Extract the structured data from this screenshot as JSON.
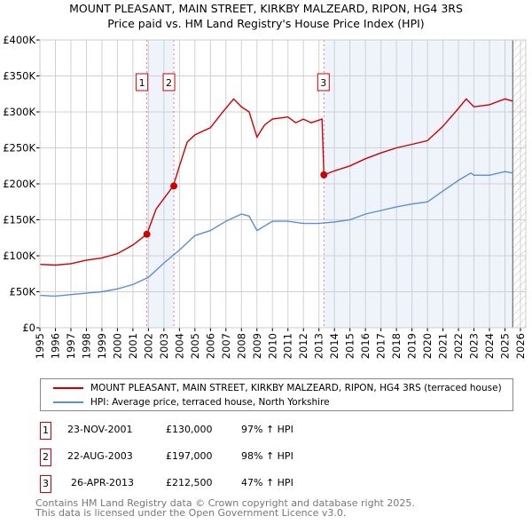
{
  "chart_data": {
    "type": "line",
    "title": "MOUNT PLEASANT, MAIN STREET, KIRKBY MALZEARD, RIPON, HG4 3RS",
    "subtitle": "Price paid vs. HM Land Registry's House Price Index (HPI)",
    "xlim": [
      1995,
      2026
    ],
    "ylim": [
      0,
      400000
    ],
    "x_ticks": [
      "1995",
      "1996",
      "1997",
      "1998",
      "1999",
      "2000",
      "2001",
      "2002",
      "2003",
      "2004",
      "2005",
      "2006",
      "2007",
      "2008",
      "2009",
      "2010",
      "2011",
      "2012",
      "2013",
      "2014",
      "2015",
      "2016",
      "2017",
      "2018",
      "2019",
      "2020",
      "2021",
      "2022",
      "2023",
      "2024",
      "2025",
      "2026"
    ],
    "y_ticks": [
      {
        "v": 0,
        "label": "£0"
      },
      {
        "v": 50000,
        "label": "£50K"
      },
      {
        "v": 100000,
        "label": "£100K"
      },
      {
        "v": 150000,
        "label": "£150K"
      },
      {
        "v": 200000,
        "label": "£200K"
      },
      {
        "v": 250000,
        "label": "£250K"
      },
      {
        "v": 300000,
        "label": "£300K"
      },
      {
        "v": 350000,
        "label": "£350K"
      },
      {
        "v": 400000,
        "label": "£400K"
      }
    ],
    "grid": true,
    "series": [
      {
        "name": "MOUNT PLEASANT, MAIN STREET, KIRKBY MALZEARD, RIPON, HG4 3RS (terraced house)",
        "color": "#cc0000",
        "x": [
          1995,
          1996,
          1997,
          1998,
          1999,
          2000,
          2001,
          2001.9,
          2002.5,
          2003.6,
          2004,
          2004.5,
          2005,
          2006,
          2006.8,
          2007.5,
          2008,
          2008.5,
          2009,
          2009.5,
          2010,
          2011,
          2011.5,
          2012,
          2012.5,
          2013.2,
          2013.32,
          2014,
          2015,
          2016,
          2017,
          2018,
          2019,
          2020,
          2021,
          2022,
          2022.5,
          2023,
          2024,
          2025,
          2025.5
        ],
        "y": [
          88000,
          87000,
          89000,
          94000,
          97000,
          103000,
          115000,
          130000,
          165000,
          197000,
          225000,
          258000,
          268000,
          278000,
          300000,
          318000,
          307000,
          300000,
          265000,
          282000,
          290000,
          293000,
          285000,
          290000,
          285000,
          290000,
          212500,
          218000,
          225000,
          235000,
          243000,
          250000,
          255000,
          260000,
          280000,
          305000,
          318000,
          307000,
          310000,
          318000,
          315000
        ]
      },
      {
        "name": "HPI: Average price, terraced house, North Yorkshire",
        "color": "#5b8fd0",
        "x": [
          1995,
          1996,
          1997,
          1998,
          1999,
          2000,
          2001,
          2002,
          2003,
          2004,
          2005,
          2006,
          2007,
          2008,
          2008.5,
          2009,
          2010,
          2011,
          2012,
          2013,
          2014,
          2015,
          2016,
          2017,
          2018,
          2019,
          2020,
          2021,
          2022,
          2022.8,
          2023,
          2024,
          2025,
          2025.5
        ],
        "y": [
          45000,
          44000,
          46000,
          48000,
          50000,
          54000,
          60000,
          70000,
          90000,
          108000,
          128000,
          135000,
          148000,
          158000,
          155000,
          135000,
          148000,
          148000,
          145000,
          145000,
          147000,
          150000,
          158000,
          163000,
          168000,
          172000,
          175000,
          190000,
          205000,
          215000,
          212000,
          212000,
          217000,
          215000
        ]
      }
    ],
    "sales": [
      {
        "n": "1",
        "x": 2001.9,
        "y": 130000,
        "date": "23-NOV-2001",
        "price": "£130,000",
        "hpi": "97% ↑ HPI"
      },
      {
        "n": "2",
        "x": 2003.64,
        "y": 197000,
        "date": "22-AUG-2003",
        "price": "£197,000",
        "hpi": "98% ↑ HPI"
      },
      {
        "n": "3",
        "x": 2013.32,
        "y": 212500,
        "date": "26-APR-2013",
        "price": "£212,500",
        "hpi": "47% ↑ HPI"
      }
    ],
    "shaded_ranges": [
      [
        2001.9,
        2003.64
      ],
      [
        2013.32,
        2025.5
      ]
    ],
    "hatched_from": 2025.5
  },
  "footer": {
    "line1": "Contains HM Land Registry data © Crown copyright and database right 2025.",
    "line2": "This data is licensed under the Open Government Licence v3.0."
  }
}
